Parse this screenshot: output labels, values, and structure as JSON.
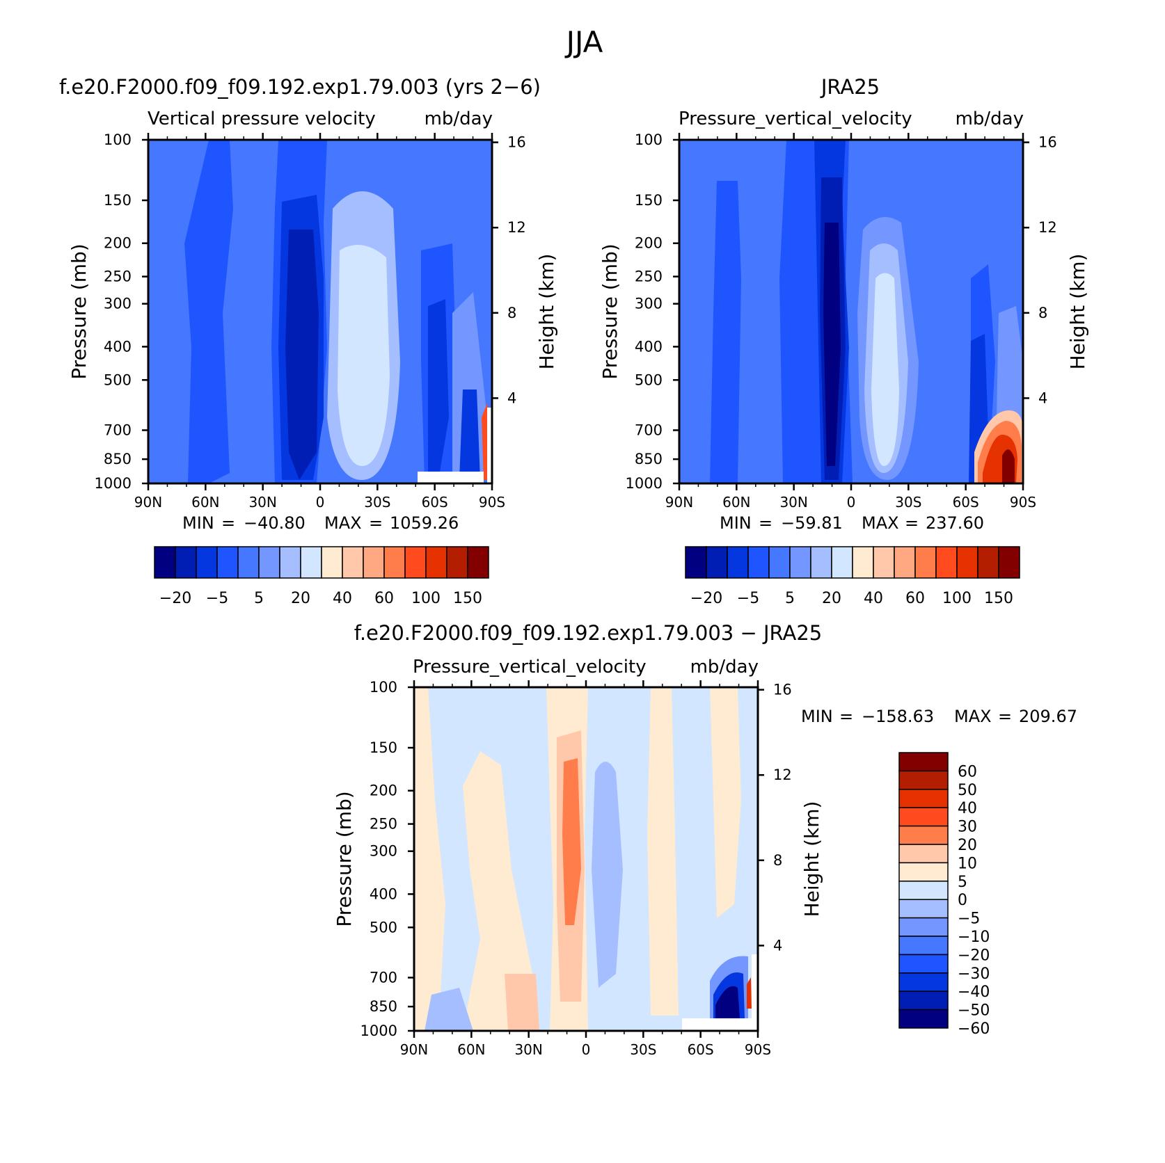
{
  "figure": {
    "title": "JJA"
  },
  "colors": {
    "main_levels": [
      "#000080",
      "#001EB4",
      "#0537E1",
      "#1E55FF",
      "#4678FF",
      "#7396FF",
      "#A5BEFF",
      "#D2E6FF",
      "#FFEBD2",
      "#FFC8AA",
      "#FFA882",
      "#FF7D4B",
      "#FF4B1E",
      "#E63200",
      "#B41E00",
      "#820000"
    ],
    "diff_levels": [
      "#000080",
      "#001EB4",
      "#0537E1",
      "#1E55FF",
      "#4678FF",
      "#7396FF",
      "#A5BEFF",
      "#D2E6FF",
      "#FFEBD2",
      "#FFC8AA",
      "#FF7D4B",
      "#FF4B1E",
      "#E63200",
      "#B41E00",
      "#820000"
    ]
  },
  "chart_data": [
    {
      "type": "heatmap",
      "title": "f.e20.F2000.f09_f09.192.exp1.79.003 (yrs 2−6)",
      "subtitle_left": "Vertical pressure velocity",
      "subtitle_right": "mb/day",
      "ylabel": "Pressure (mb)",
      "ylabel_right": "Height (km)",
      "x_ticks": [
        "90N",
        "60N",
        "30N",
        "0",
        "30S",
        "60S",
        "90S"
      ],
      "y_ticks": [
        "100",
        "150",
        "200",
        "250",
        "300",
        "400",
        "500",
        "700",
        "850",
        "1000"
      ],
      "y_ticks_right": [
        "16",
        "12",
        "8",
        "4"
      ],
      "y_scale": "log",
      "ylim": [
        1000,
        100
      ],
      "stats": {
        "min_label": "MIN",
        "min": "−40.80",
        "max_label": "MAX",
        "max": "1059.26"
      },
      "colorbar": {
        "orientation": "horizontal",
        "labels": [
          "−20",
          "−5",
          "5",
          "20",
          "40",
          "60",
          "100",
          "150"
        ]
      },
      "features": [
        {
          "label": "minimum band",
          "lat": -10,
          "p_min": 250,
          "p_max": 1000,
          "level_index": 0
        },
        {
          "label": "maximum band",
          "lat": 20,
          "p_min": 200,
          "p_max": 950,
          "level_index": 7
        }
      ]
    },
    {
      "type": "heatmap",
      "title": "JRA25",
      "subtitle_left": "Pressure_vertical_velocity",
      "subtitle_right": "mb/day",
      "ylabel": "Pressure (mb)",
      "ylabel_right": "Height (km)",
      "x_ticks": [
        "90N",
        "60N",
        "30N",
        "0",
        "30S",
        "60S",
        "90S"
      ],
      "y_ticks": [
        "100",
        "150",
        "200",
        "250",
        "300",
        "400",
        "500",
        "700",
        "850",
        "1000"
      ],
      "y_ticks_right": [
        "16",
        "12",
        "8",
        "4"
      ],
      "y_scale": "log",
      "ylim": [
        1000,
        100
      ],
      "stats": {
        "min_label": "MIN",
        "min": "−59.81",
        "max_label": "MAX",
        "max": "237.60"
      },
      "colorbar": {
        "orientation": "horizontal",
        "labels": [
          "−20",
          "−5",
          "5",
          "20",
          "40",
          "60",
          "100",
          "150"
        ]
      },
      "features": [
        {
          "label": "minimum band",
          "lat": -10,
          "p_min": 180,
          "p_max": 1000,
          "level_index": 0
        },
        {
          "label": "maximum band",
          "lat": 20,
          "p_min": 230,
          "p_max": 950,
          "level_index": 7
        },
        {
          "label": "polar maximum",
          "lat": 80,
          "p_min": 650,
          "p_max": 1000,
          "level_index": 13
        }
      ]
    },
    {
      "type": "heatmap",
      "title": "f.e20.F2000.f09_f09.192.exp1.79.003 − JRA25",
      "subtitle_left": "Pressure_vertical_velocity",
      "subtitle_right": "mb/day",
      "ylabel": "Pressure (mb)",
      "ylabel_right": "Height (km)",
      "x_ticks": [
        "90N",
        "60N",
        "30N",
        "0",
        "30S",
        "60S",
        "90S"
      ],
      "y_ticks": [
        "100",
        "150",
        "200",
        "250",
        "300",
        "400",
        "500",
        "700",
        "850",
        "1000"
      ],
      "y_ticks_right": [
        "16",
        "12",
        "8",
        "4"
      ],
      "y_scale": "log",
      "ylim": [
        1000,
        100
      ],
      "stats": {
        "min_label": "MIN",
        "min": "−158.63",
        "max_label": "MAX",
        "max": "209.67"
      },
      "colorbar": {
        "orientation": "vertical",
        "labels": [
          "60",
          "50",
          "40",
          "30",
          "20",
          "10",
          "5",
          "0",
          "−5",
          "−10",
          "−20",
          "−30",
          "−40",
          "−50",
          "−60"
        ]
      },
      "features": [
        {
          "label": "positive band",
          "lat": 8,
          "p_min": 150,
          "p_max": 1000,
          "level_index": 11
        },
        {
          "label": "polar minimum",
          "lat": 75,
          "p_min": 700,
          "p_max": 1000,
          "level_index": 0
        }
      ]
    }
  ]
}
